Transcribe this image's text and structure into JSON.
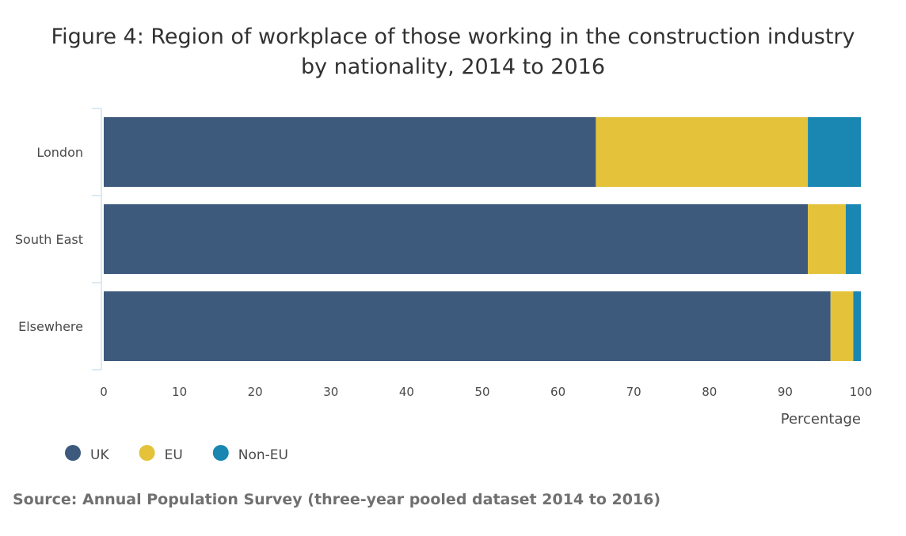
{
  "title_line1": "Figure 4: Region of workplace of those working in the construction industry",
  "title_line2": "by nationality, 2014 to 2016",
  "source": "Source: Annual Population Survey (three-year pooled dataset 2014 to 2016)",
  "colors": {
    "UK": "#3d5a7c",
    "EU": "#e4c33b",
    "Non-EU": "#1a87b2"
  },
  "chart_data": {
    "type": "bar",
    "orientation": "horizontal",
    "stacked": true,
    "categories": [
      "London",
      "South East",
      "Elsewhere"
    ],
    "series": [
      {
        "name": "UK",
        "values": [
          65,
          93,
          96
        ]
      },
      {
        "name": "EU",
        "values": [
          28,
          5,
          3
        ]
      },
      {
        "name": "Non-EU",
        "values": [
          7,
          2,
          1
        ]
      }
    ],
    "xlabel": "Percentage",
    "ylabel": "",
    "xlim": [
      0,
      100
    ],
    "xticks": [
      0,
      10,
      20,
      30,
      40,
      50,
      60,
      70,
      80,
      90,
      100
    ],
    "legend_position": "bottom-left",
    "grid": false
  }
}
